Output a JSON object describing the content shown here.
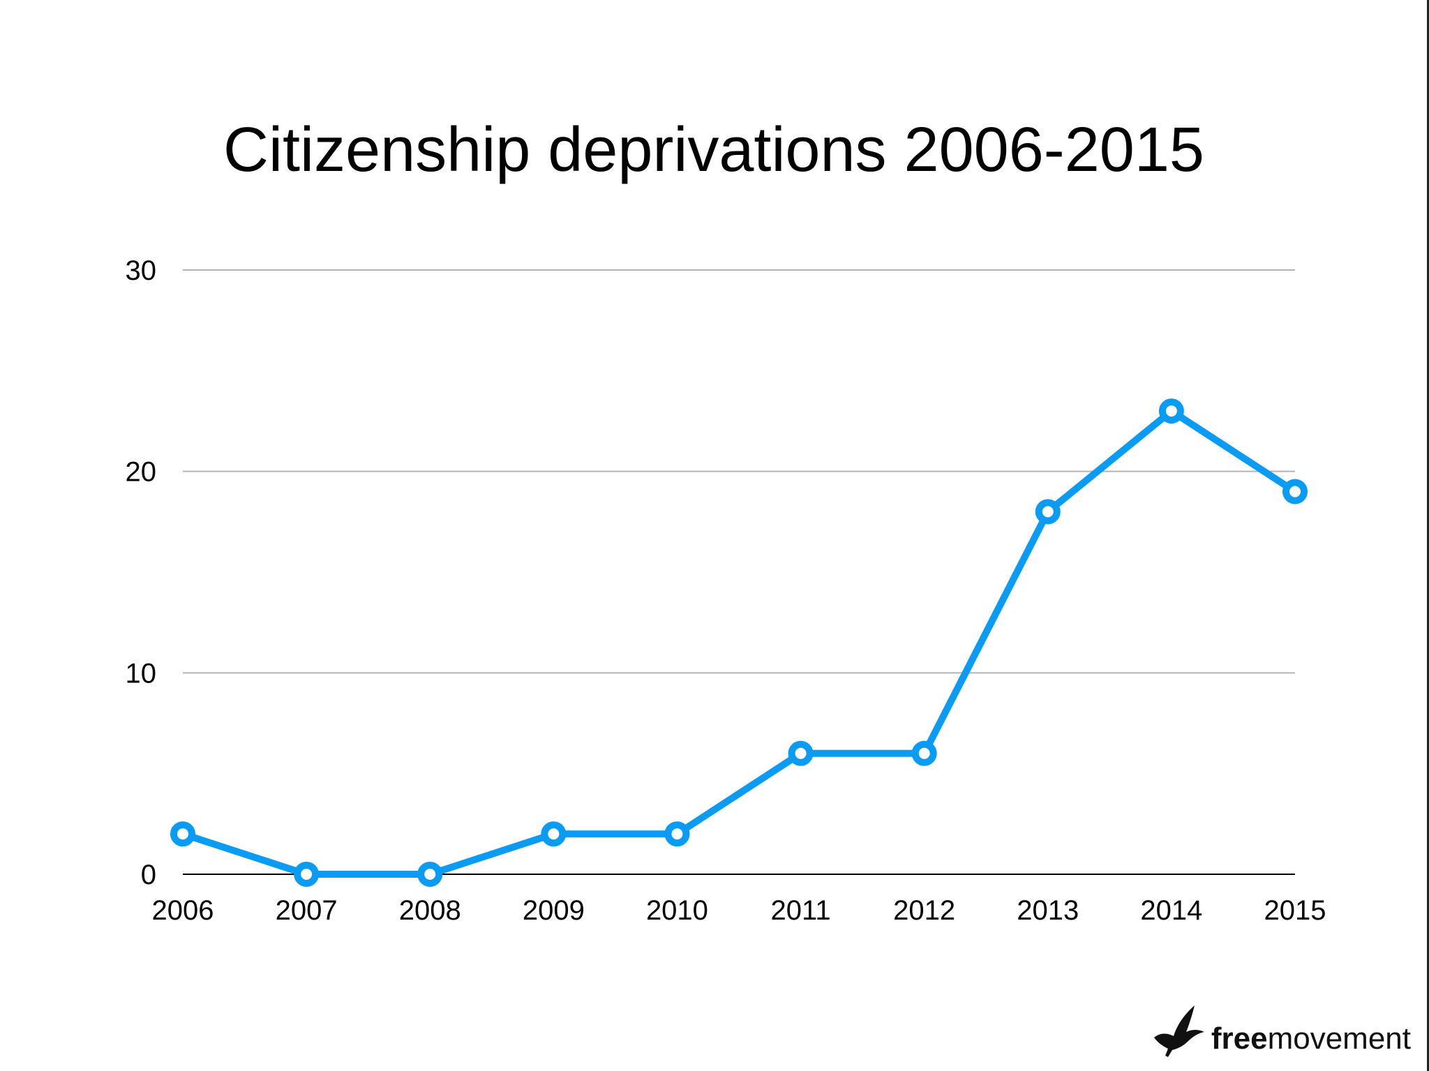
{
  "chart_data": {
    "type": "line",
    "title": "Citizenship deprivations 2006-2015",
    "xlabel": "",
    "ylabel": "",
    "categories": [
      "2006",
      "2007",
      "2008",
      "2009",
      "2010",
      "2011",
      "2012",
      "2013",
      "2014",
      "2015"
    ],
    "series": [
      {
        "values": [
          2,
          0,
          0,
          2,
          2,
          6,
          6,
          18,
          23,
          19
        ]
      }
    ],
    "ylim": [
      0,
      30
    ],
    "yticks": [
      "0",
      "10",
      "20",
      "30"
    ],
    "grid": true,
    "legend": "none",
    "colors": {
      "line": "#0A9BF5",
      "grid": "#b3b3b3",
      "axis": "#000000"
    }
  },
  "logo": {
    "bold": "free",
    "regular": "movement",
    "icon": "bird-icon"
  }
}
